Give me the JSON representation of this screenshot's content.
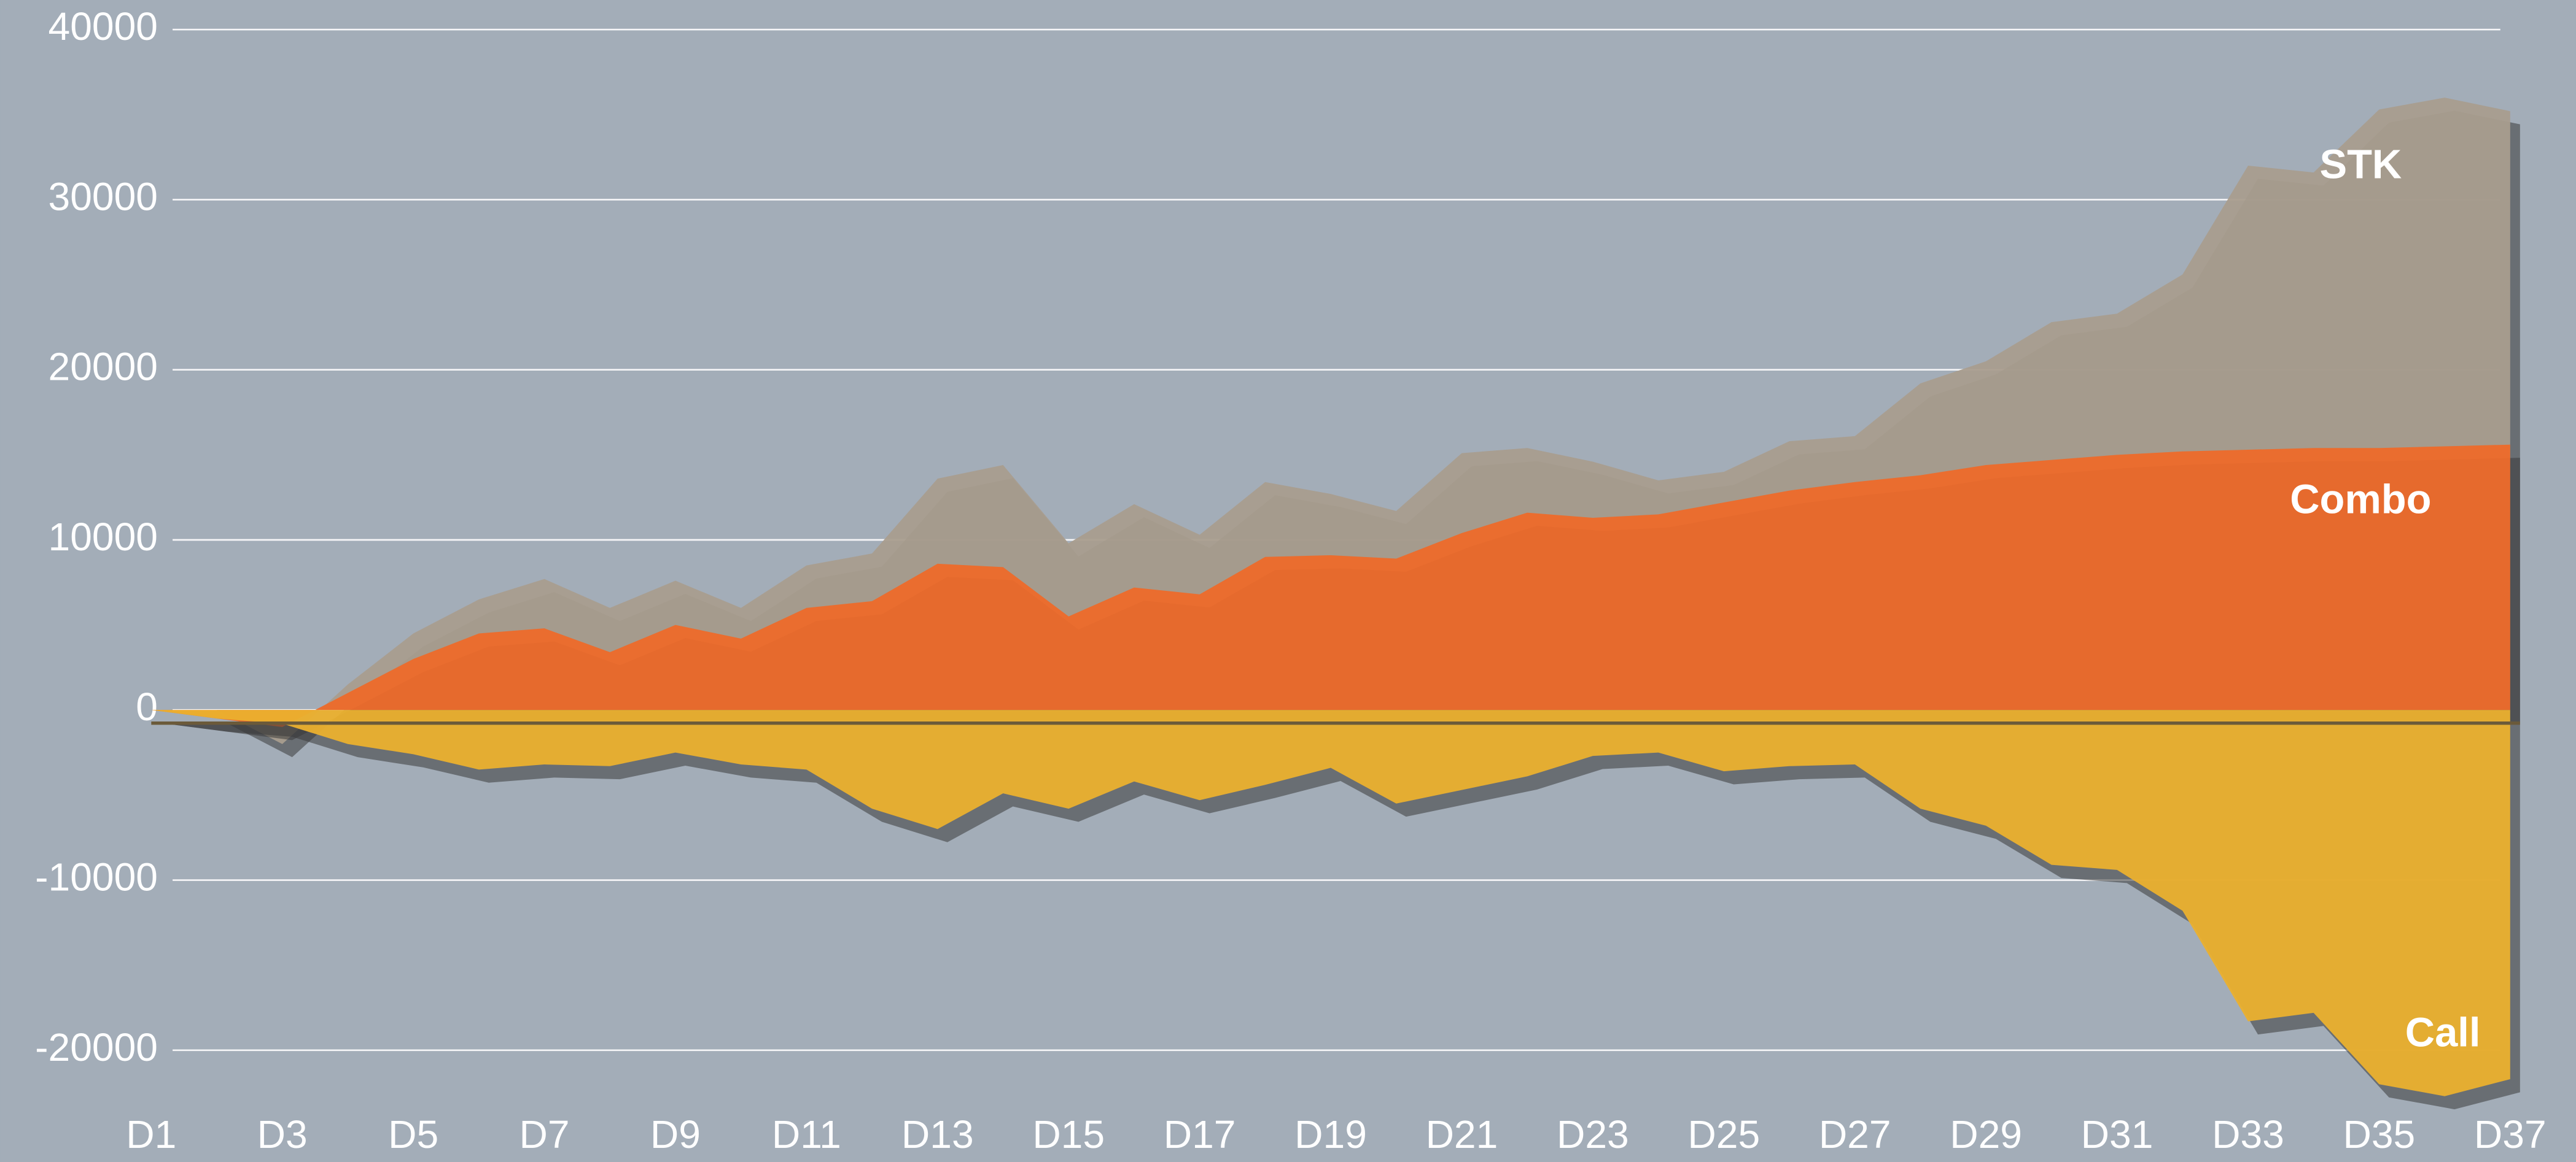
{
  "chart_data": {
    "type": "area",
    "categories": [
      "D1",
      null,
      "D3",
      null,
      "D5",
      null,
      "D7",
      null,
      "D9",
      null,
      "D11",
      null,
      "D13",
      null,
      "D15",
      null,
      "D17",
      null,
      "D19",
      null,
      "D21",
      null,
      "D23",
      null,
      "D25",
      null,
      "D27",
      null,
      "D29",
      null,
      "D31",
      null,
      "D33",
      null,
      "D35",
      null,
      "D37"
    ],
    "series": [
      {
        "name": "STK",
        "color": "#a99d8e",
        "values": [
          0,
          0,
          -2000,
          1500,
          4500,
          6500,
          7700,
          6000,
          7600,
          6000,
          8500,
          9200,
          13600,
          14400,
          9800,
          12100,
          10300,
          13400,
          12700,
          11700,
          15100,
          15400,
          14600,
          13500,
          14000,
          15800,
          16100,
          19200,
          20500,
          22800,
          23300,
          25600,
          32000,
          31600,
          35300,
          36000,
          35200
        ]
      },
      {
        "name": "Combo",
        "color": "#ed6a2a",
        "values": [
          0,
          -500,
          -1000,
          1000,
          3000,
          4500,
          4800,
          3400,
          5000,
          4200,
          6000,
          6400,
          8600,
          8400,
          5500,
          7200,
          6800,
          9000,
          9100,
          8900,
          10400,
          11600,
          11300,
          11500,
          12200,
          12900,
          13400,
          13800,
          14400,
          14700,
          15000,
          15200,
          15300,
          15400,
          15400,
          15500,
          15600
        ]
      },
      {
        "name": "Call",
        "color": "#ebb02e",
        "values": [
          0,
          -500,
          -800,
          -2000,
          -2600,
          -3500,
          -3200,
          -3300,
          -2500,
          -3200,
          -3500,
          -5800,
          -7000,
          -4900,
          -5800,
          -4200,
          -5300,
          -4400,
          -3400,
          -5500,
          -4700,
          -3900,
          -2700,
          -2500,
          -3600,
          -3300,
          -3200,
          -5800,
          -6800,
          -9100,
          -9400,
          -11800,
          -18300,
          -17800,
          -22000,
          -22700,
          -21700
        ]
      }
    ],
    "ylim": [
      -23000,
      40000
    ],
    "yticks": [
      -20000,
      -10000,
      0,
      10000,
      20000,
      30000,
      40000
    ],
    "grid": true
  }
}
